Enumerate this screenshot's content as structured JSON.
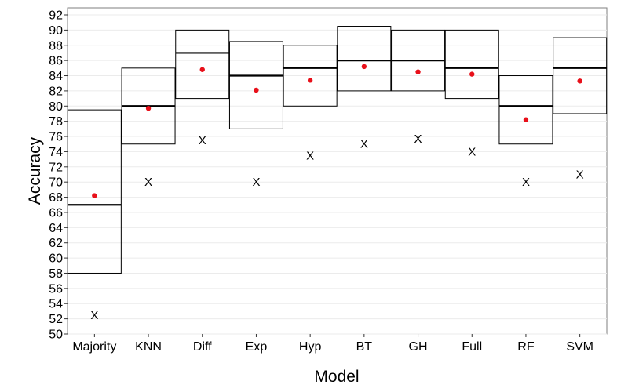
{
  "chart_data": {
    "type": "box",
    "title": "",
    "xlabel": "Model",
    "ylabel": "Accuracy",
    "ylim": [
      50,
      92
    ],
    "yticks": [
      50,
      52,
      54,
      56,
      58,
      60,
      62,
      64,
      66,
      68,
      70,
      72,
      74,
      76,
      78,
      80,
      82,
      84,
      86,
      88,
      90,
      92
    ],
    "grid": true,
    "legend": "none",
    "colors": {
      "mean": "#e8101a",
      "box": "#000000",
      "grid": "#ebebeb"
    },
    "categories": [
      "Majority",
      "KNN",
      "Diff",
      "Exp",
      "Hyp",
      "BT",
      "GH",
      "Full",
      "RF",
      "SVM"
    ],
    "boxes": [
      {
        "category": "Majority",
        "q1": 58.0,
        "median": 67.0,
        "q3": 79.5,
        "mean": 68.2,
        "x_marker": 52.5
      },
      {
        "category": "KNN",
        "q1": 75.0,
        "median": 80.0,
        "q3": 85.0,
        "mean": 79.7,
        "x_marker": 70.0
      },
      {
        "category": "Diff",
        "q1": 81.0,
        "median": 87.0,
        "q3": 90.0,
        "mean": 84.8,
        "x_marker": 75.5
      },
      {
        "category": "Exp",
        "q1": 77.0,
        "median": 84.0,
        "q3": 88.5,
        "mean": 82.1,
        "x_marker": 70.0
      },
      {
        "category": "Hyp",
        "q1": 80.0,
        "median": 85.0,
        "q3": 88.0,
        "mean": 83.4,
        "x_marker": 73.5
      },
      {
        "category": "BT",
        "q1": 82.0,
        "median": 86.0,
        "q3": 90.5,
        "mean": 85.2,
        "x_marker": 75.0
      },
      {
        "category": "GH",
        "q1": 82.0,
        "median": 86.0,
        "q3": 90.0,
        "mean": 84.5,
        "x_marker": 75.7
      },
      {
        "category": "Full",
        "q1": 81.0,
        "median": 85.0,
        "q3": 90.0,
        "mean": 84.2,
        "x_marker": 74.0
      },
      {
        "category": "RF",
        "q1": 75.0,
        "median": 80.0,
        "q3": 84.0,
        "mean": 78.2,
        "x_marker": 70.0
      },
      {
        "category": "SVM",
        "q1": 79.0,
        "median": 85.0,
        "q3": 89.0,
        "mean": 83.3,
        "x_marker": 71.0
      }
    ],
    "x_marker_glyph": "X"
  }
}
